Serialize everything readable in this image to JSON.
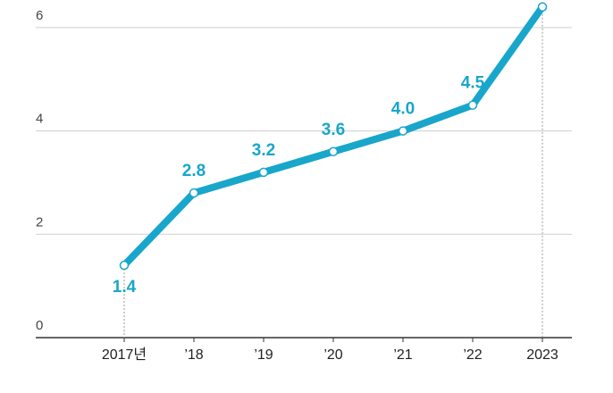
{
  "chart_data": {
    "type": "line",
    "categories": [
      "2017년",
      "’18",
      "’19",
      "’20",
      "’21",
      "’22",
      "2023"
    ],
    "series": [
      {
        "color": "#19a6cb",
        "values": [
          1.4,
          2.8,
          3.2,
          3.6,
          4.0,
          4.5,
          6.4
        ],
        "value_labels": [
          "1.4",
          "2.8",
          "3.2",
          "3.6",
          "4.0",
          "4.5",
          null
        ]
      }
    ],
    "ylim": [
      0,
      6.5
    ],
    "yticks": [
      0,
      2,
      4,
      6
    ],
    "grid": true
  }
}
